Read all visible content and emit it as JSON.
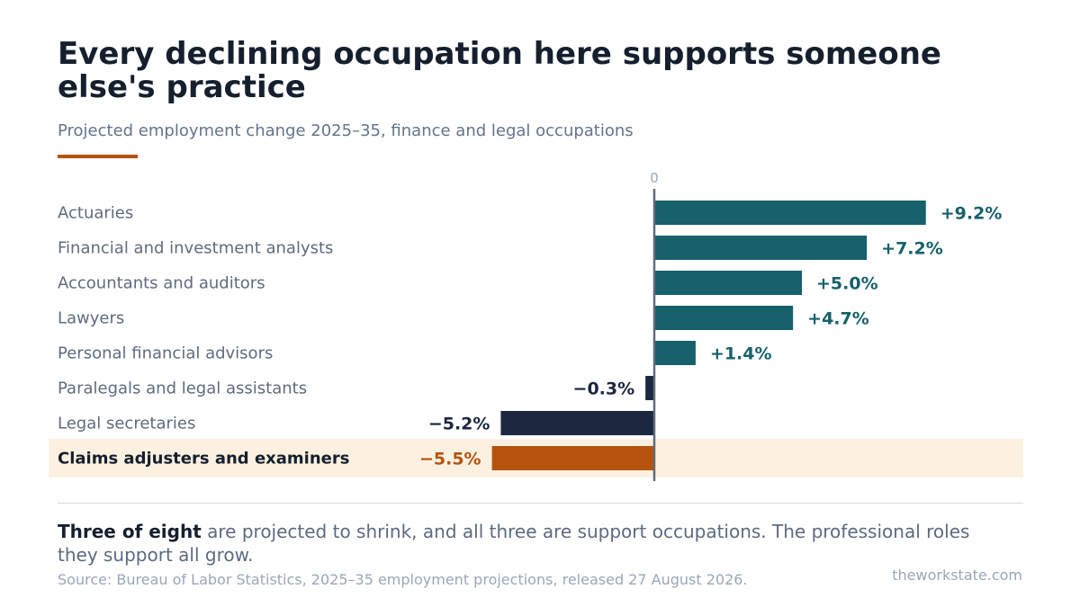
{
  "header": {
    "title": "Every declining occupation here supports someone else's practice",
    "subtitle": "Projected employment change 2025–35, finance and legal occupations"
  },
  "chart_data": {
    "type": "bar",
    "orientation": "horizontal",
    "zero_label": "0",
    "categories": [
      "Actuaries",
      "Financial and investment analysts",
      "Accountants and auditors",
      "Lawyers",
      "Personal financial advisors",
      "Paralegals and legal assistants",
      "Legal secretaries",
      "Claims adjusters and examiners"
    ],
    "values": [
      9.2,
      7.2,
      5.0,
      4.7,
      1.4,
      -0.3,
      -5.2,
      -5.5
    ],
    "value_labels": [
      "+9.2%",
      "+7.2%",
      "+5.0%",
      "+4.7%",
      "+1.4%",
      "−0.3%",
      "−5.2%",
      "−5.5%"
    ],
    "highlighted_category": "Claims adjusters and examiners",
    "xlim": [
      -20,
      12
    ],
    "colors": {
      "positive": "#16616b",
      "negative": "#1c2740",
      "highlight": "#b5530e",
      "highlight_band": "#fcf1e1",
      "axis": "#5f6b7a"
    }
  },
  "footer": {
    "takeaway_bold": "Three of eight",
    "takeaway_rest": " are projected to shrink, and all three are support occupations. The professional roles they support all grow.",
    "source": "Source: Bureau of Labor Statistics, 2025–35 employment projections, released 27 August 2026.",
    "brand": "theworkstate.com"
  }
}
